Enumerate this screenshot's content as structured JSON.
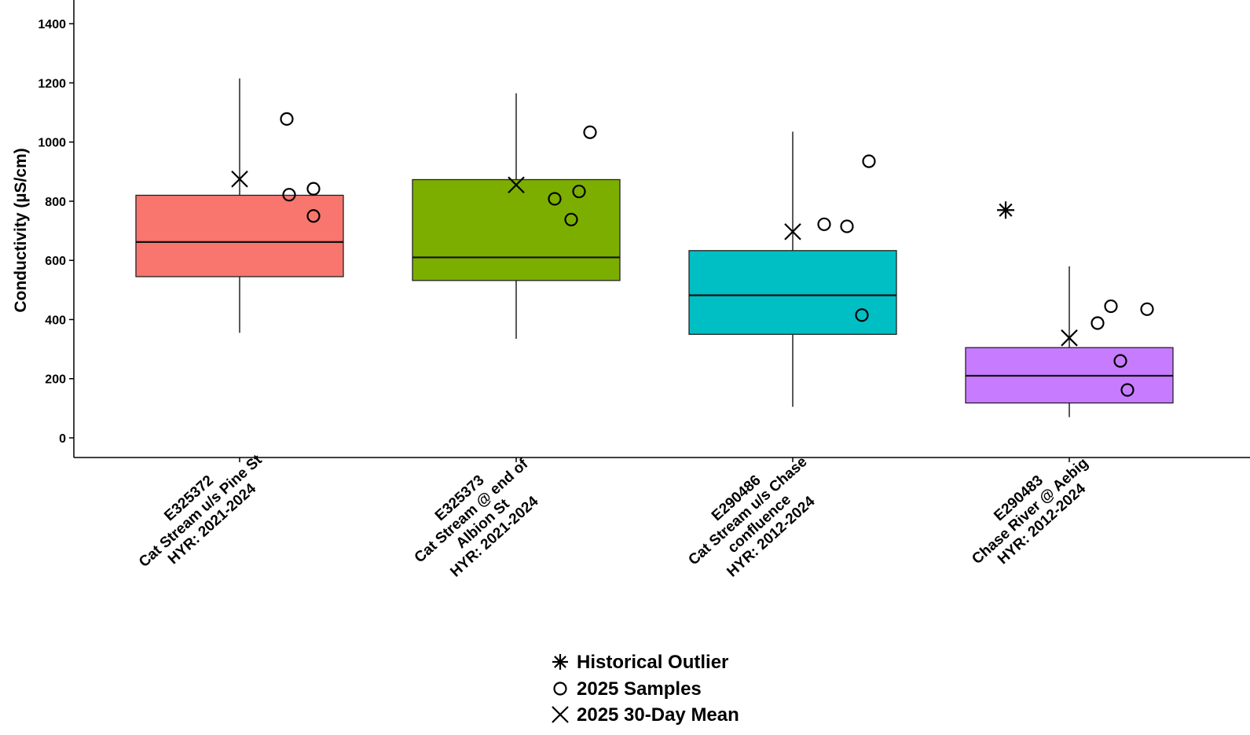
{
  "chart_data": {
    "type": "box",
    "title": "",
    "xlabel": "",
    "ylabel": "Conductivity (µS/cm)",
    "ylim": [
      -70,
      1460
    ],
    "yticks": [
      0,
      200,
      400,
      600,
      800,
      1000,
      1200,
      1400
    ],
    "grid": false,
    "legend_position": "bottom",
    "categories": [
      {
        "lines": [
          "E325372",
          "Cat Stream u/s Pine St",
          "HYR: 2021-2024"
        ],
        "color": "#f8766d",
        "box": {
          "whisker_low": 355,
          "q1": 545,
          "median": 662,
          "q3": 820,
          "whisker_high": 1215
        },
        "samples": [
          1078,
          822,
          842,
          750
        ],
        "mean_30day": 875,
        "historical_outliers": []
      },
      {
        "lines": [
          "E325373",
          "Cat Stream @ end of",
          "Albion St",
          "HYR: 2021-2024"
        ],
        "color": "#7cae00",
        "box": {
          "whisker_low": 335,
          "q1": 532,
          "median": 610,
          "q3": 873,
          "whisker_high": 1165
        },
        "samples": [
          1033,
          808,
          833,
          738
        ],
        "mean_30day": 855,
        "historical_outliers": []
      },
      {
        "lines": [
          "E290486",
          "Cat Stream u/s Chase",
          "confluence",
          "HYR: 2012-2024"
        ],
        "color": "#00bfc4",
        "box": {
          "whisker_low": 105,
          "q1": 350,
          "median": 482,
          "q3": 633,
          "whisker_high": 1035
        },
        "samples": [
          935,
          722,
          715,
          415
        ],
        "mean_30day": 697,
        "historical_outliers": []
      },
      {
        "lines": [
          "E290483",
          "Chase River @ Aebig",
          "HYR: 2012-2024"
        ],
        "color": "#c77cff",
        "box": {
          "whisker_low": 70,
          "q1": 118,
          "median": 210,
          "q3": 305,
          "whisker_high": 580
        },
        "samples": [
          388,
          445,
          435,
          260,
          162
        ],
        "mean_30day": 338,
        "historical_outliers": [
          770
        ]
      }
    ],
    "legend": [
      {
        "symbol": "asterisk",
        "label": "Historical Outlier"
      },
      {
        "symbol": "circle",
        "label": "2025 Samples"
      },
      {
        "symbol": "x",
        "label": "2025 30-Day Mean"
      }
    ]
  }
}
